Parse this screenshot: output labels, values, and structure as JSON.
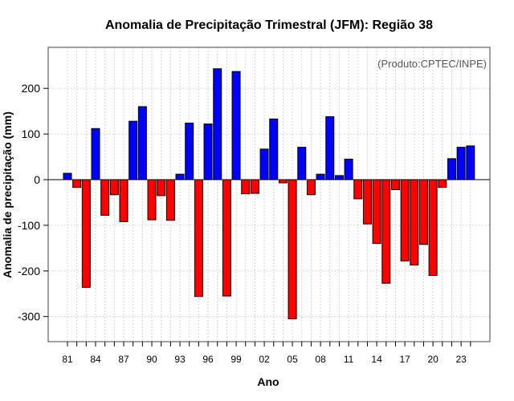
{
  "chart_data": {
    "type": "bar",
    "title": "Anomalia de Precipitação Trimestral (JFM): Região 38",
    "credit": "(Produto:CPTEC/INPE)",
    "xlabel": "Ano",
    "ylabel": "Anomalia de precipitação (mm)",
    "ylim": [
      -355,
      290
    ],
    "yticks": [
      -300,
      -200,
      -100,
      0,
      100,
      200
    ],
    "x_tick_labels": [
      "81",
      "84",
      "87",
      "90",
      "93",
      "96",
      "99",
      "02",
      "05",
      "08",
      "11",
      "14",
      "17",
      "20",
      "23"
    ],
    "x_tick_years": [
      1981,
      1984,
      1987,
      1990,
      1993,
      1996,
      1999,
      2002,
      2005,
      2008,
      2011,
      2014,
      2017,
      2020,
      2023
    ],
    "positive_color": "#0000ff",
    "negative_color": "#ff0000",
    "grid": true,
    "x": [
      1981,
      1982,
      1983,
      1984,
      1985,
      1986,
      1987,
      1988,
      1989,
      1990,
      1991,
      1992,
      1993,
      1994,
      1995,
      1996,
      1997,
      1998,
      1999,
      2000,
      2001,
      2002,
      2003,
      2004,
      2005,
      2006,
      2007,
      2008,
      2009,
      2010,
      2011,
      2012,
      2013,
      2014,
      2015,
      2016,
      2017,
      2018,
      2019,
      2020,
      2021,
      2022,
      2023,
      2024
    ],
    "values": [
      14,
      -17,
      -236,
      112,
      -78,
      -33,
      -92,
      128,
      160,
      -88,
      -35,
      -89,
      12,
      124,
      -256,
      122,
      243,
      -255,
      237,
      -31,
      -30,
      67,
      133,
      -7,
      -305,
      71,
      -33,
      12,
      138,
      9,
      45,
      -42,
      -97,
      -140,
      -227,
      -22,
      -178,
      -187,
      -142,
      -210,
      -17,
      46,
      71,
      74
    ]
  }
}
